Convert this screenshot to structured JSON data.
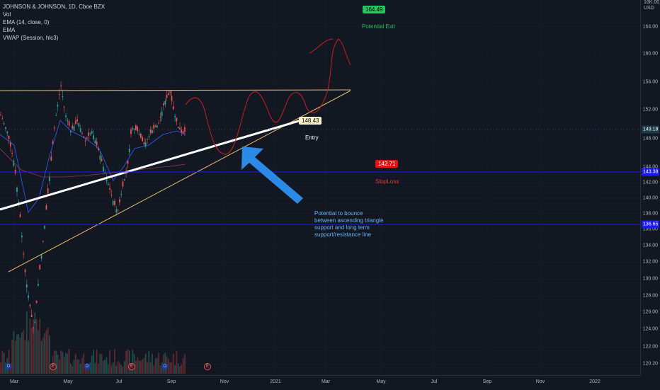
{
  "legend": {
    "symbol": "JOHNSON & JOHNSON, 1D, Cboe BZX",
    "indicators": [
      "Vol",
      "EMA (14, close, 0)",
      "EMA",
      "VWAP (Session, hlc3)"
    ]
  },
  "price_axis": {
    "top_label": "16K.00",
    "currency": "USD",
    "ticks": [
      "164.00",
      "160.00",
      "156.00",
      "152.00",
      "148.00",
      "144.00",
      "142.00",
      "140.00",
      "138.00",
      "136.00",
      "134.00",
      "132.00",
      "130.00",
      "128.00",
      "126.00",
      "124.00",
      "122.00",
      "120.20"
    ],
    "last_price": "149.18",
    "support_1": "143.38",
    "support_2": "136.65"
  },
  "time_axis": {
    "labels": [
      "Mar",
      "May",
      "Jul",
      "Sep",
      "Nov",
      "2021",
      "Mar",
      "May",
      "Jul",
      "Sep",
      "Nov",
      "2022"
    ]
  },
  "annotations": {
    "target_value": "164.49",
    "target_label": "Potential Exit",
    "entry_value": "148.43",
    "entry_label": "Entry",
    "stop_value": "142.71",
    "stop_label": "StopLoss",
    "callout_lines": [
      "Potential to bounce",
      "between ascending triangle",
      "support and long term",
      "support/resistance line"
    ]
  },
  "events": [
    "D",
    "E",
    "D",
    "E",
    "D",
    "E"
  ],
  "colors": {
    "background": "#131722",
    "up": "#26a69a",
    "down": "#ef5350",
    "support_line": "#1a1aff",
    "last_price": "#1e3a4a",
    "target": "#22c55e",
    "stop": "#e91010",
    "trend_yellow": "#e0c36a",
    "arrow": "#2b8ae6"
  }
}
